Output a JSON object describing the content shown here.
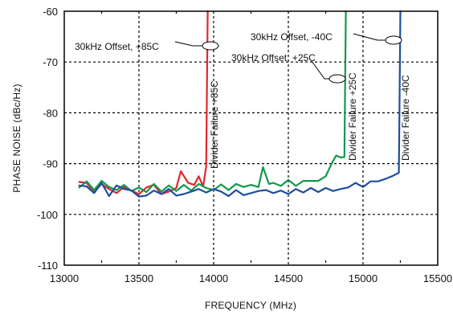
{
  "chart_data": {
    "type": "line",
    "xlabel": "FREQUENCY (MHz)",
    "ylabel": "PHASE NOISE (dBc/Hz)",
    "xlim": [
      13000,
      15500
    ],
    "ylim": [
      -110,
      -60
    ],
    "x_ticks": [
      13000,
      13500,
      14000,
      14500,
      15000,
      15500
    ],
    "y_ticks": [
      -60,
      -70,
      -80,
      -90,
      -100,
      -110
    ],
    "x_tick_labels": [
      "13000",
      "13500",
      "14000",
      "14500",
      "15000",
      "15500"
    ],
    "y_tick_labels": [
      "-60",
      "-70",
      "-80",
      "-90",
      "-100",
      "-110"
    ],
    "grid": true,
    "series": [
      {
        "name": "30kHz Offset, +85C",
        "color": "#e3262b",
        "points": [
          [
            13100,
            -93.6
          ],
          [
            13150,
            -93.8
          ],
          [
            13200,
            -95.6
          ],
          [
            13250,
            -94.0
          ],
          [
            13300,
            -95.0
          ],
          [
            13350,
            -95.8
          ],
          [
            13400,
            -94.6
          ],
          [
            13450,
            -95.3
          ],
          [
            13500,
            -96.0
          ],
          [
            13550,
            -94.7
          ],
          [
            13600,
            -94.2
          ],
          [
            13650,
            -96.0
          ],
          [
            13700,
            -95.5
          ],
          [
            13750,
            -94.8
          ],
          [
            13780,
            -91.5
          ],
          [
            13830,
            -93.8
          ],
          [
            13870,
            -94.2
          ],
          [
            13900,
            -92.5
          ],
          [
            13930,
            -94.5
          ],
          [
            13950,
            -90.5
          ],
          [
            13960,
            -60
          ]
        ]
      },
      {
        "name": "30kHz Offset, +25C",
        "color": "#13994b",
        "points": [
          [
            13100,
            -94.7
          ],
          [
            13150,
            -93.5
          ],
          [
            13200,
            -95.2
          ],
          [
            13250,
            -93.4
          ],
          [
            13300,
            -94.6
          ],
          [
            13350,
            -95.2
          ],
          [
            13400,
            -94.2
          ],
          [
            13450,
            -95.4
          ],
          [
            13500,
            -94.7
          ],
          [
            13550,
            -95.6
          ],
          [
            13600,
            -94.0
          ],
          [
            13650,
            -95.5
          ],
          [
            13700,
            -94.3
          ],
          [
            13750,
            -95.4
          ],
          [
            13800,
            -94.2
          ],
          [
            13850,
            -95.3
          ],
          [
            13900,
            -94.0
          ],
          [
            13950,
            -94.8
          ],
          [
            14000,
            -95.2
          ],
          [
            14050,
            -94.1
          ],
          [
            14100,
            -95.2
          ],
          [
            14150,
            -94.0
          ],
          [
            14200,
            -94.6
          ],
          [
            14250,
            -94.2
          ],
          [
            14300,
            -94.6
          ],
          [
            14330,
            -90.7
          ],
          [
            14370,
            -94.0
          ],
          [
            14400,
            -93.8
          ],
          [
            14450,
            -94.4
          ],
          [
            14500,
            -93.2
          ],
          [
            14550,
            -94.4
          ],
          [
            14600,
            -93.4
          ],
          [
            14650,
            -93.4
          ],
          [
            14700,
            -93.4
          ],
          [
            14750,
            -92.5
          ],
          [
            14790,
            -90.0
          ],
          [
            14820,
            -88.4
          ],
          [
            14850,
            -88.8
          ],
          [
            14875,
            -88.7
          ],
          [
            14885,
            -60
          ]
        ]
      },
      {
        "name": "30kHz Offset, -40C",
        "color": "#1f4e9e",
        "points": [
          [
            13100,
            -94.3
          ],
          [
            13150,
            -94.5
          ],
          [
            13200,
            -95.8
          ],
          [
            13250,
            -93.8
          ],
          [
            13300,
            -96.4
          ],
          [
            13350,
            -94.3
          ],
          [
            13400,
            -95.0
          ],
          [
            13450,
            -95.3
          ],
          [
            13500,
            -96.5
          ],
          [
            13550,
            -96.3
          ],
          [
            13600,
            -95.3
          ],
          [
            13650,
            -96.0
          ],
          [
            13700,
            -95.0
          ],
          [
            13750,
            -96.3
          ],
          [
            13800,
            -96.0
          ],
          [
            13850,
            -95.5
          ],
          [
            13900,
            -95.0
          ],
          [
            13950,
            -95.7
          ],
          [
            14000,
            -95.0
          ],
          [
            14050,
            -95.5
          ],
          [
            14100,
            -96.4
          ],
          [
            14150,
            -95.2
          ],
          [
            14200,
            -96.2
          ],
          [
            14250,
            -95.8
          ],
          [
            14300,
            -95.4
          ],
          [
            14350,
            -95.2
          ],
          [
            14400,
            -95.8
          ],
          [
            14450,
            -95.3
          ],
          [
            14500,
            -96.0
          ],
          [
            14550,
            -95.0
          ],
          [
            14600,
            -95.7
          ],
          [
            14650,
            -94.8
          ],
          [
            14700,
            -95.6
          ],
          [
            14750,
            -94.8
          ],
          [
            14800,
            -95.4
          ],
          [
            14850,
            -95.0
          ],
          [
            14900,
            -94.7
          ],
          [
            14950,
            -93.8
          ],
          [
            15000,
            -94.6
          ],
          [
            15050,
            -93.5
          ],
          [
            15100,
            -93.5
          ],
          [
            15150,
            -93.0
          ],
          [
            15200,
            -92.4
          ],
          [
            15240,
            -91.8
          ],
          [
            15250,
            -60
          ]
        ]
      }
    ],
    "annotations": {
      "offset_labels": [
        "30kHz Offset, +85C",
        "30kHz Offset, -40C",
        "30kHz Offset, +25C"
      ],
      "failure_labels": [
        "Divider Failure +85C",
        "Divider Failure +25C",
        "Divider Failure -40C"
      ]
    }
  }
}
